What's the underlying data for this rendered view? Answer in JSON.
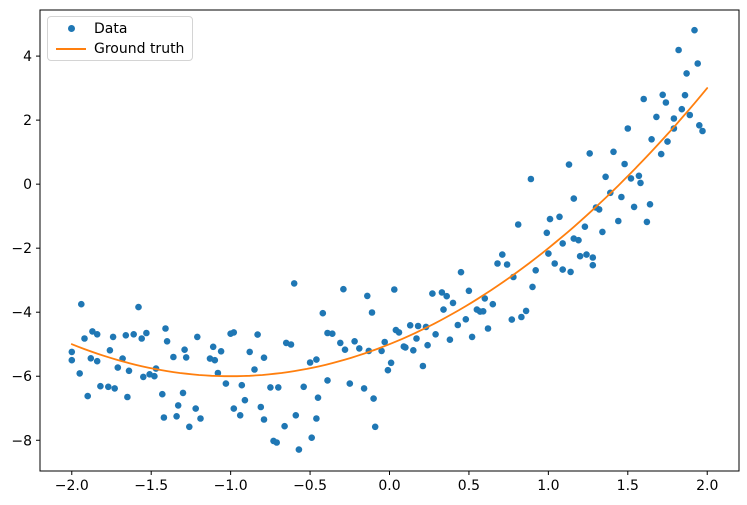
{
  "figure": {
    "background": "#ffffff"
  },
  "legend": {
    "position": "upper-left",
    "items": [
      {
        "label": "Data",
        "marker": "dot",
        "color": "#1f77b4"
      },
      {
        "label": "Ground truth",
        "marker": "line",
        "color": "#ff7f0e"
      }
    ]
  },
  "chart_data": {
    "type": "scatter",
    "title": "",
    "xlabel": "",
    "ylabel": "",
    "grid": false,
    "legend_position": "upper left",
    "xlim": [
      -2.2,
      2.2
    ],
    "ylim": [
      -8.96,
      5.44
    ],
    "xticks": [
      -2.0,
      -1.5,
      -1.0,
      -0.5,
      0.0,
      0.5,
      1.0,
      1.5,
      2.0
    ],
    "xtick_labels": [
      "−2.0",
      "−1.5",
      "−1.0",
      "−0.5",
      "0.0",
      "0.5",
      "1.0",
      "1.5",
      "2.0"
    ],
    "yticks": [
      -8,
      -6,
      -4,
      -2,
      0,
      2,
      4
    ],
    "ytick_labels": [
      "−8",
      "−6",
      "−4",
      "−2",
      "0",
      "2",
      "4"
    ],
    "colors": {
      "data": "#1f77b4",
      "ground_truth": "#ff7f0e",
      "spine": "#000000",
      "tick_text": "#000000"
    },
    "series": [
      {
        "name": "Data",
        "type": "scatter",
        "color": "#1f77b4",
        "marker_radius": 3.3,
        "points": [
          [
            -2.0,
            -5.24
          ],
          [
            -2.0,
            -5.5
          ],
          [
            -1.95,
            -5.91
          ],
          [
            -1.94,
            -3.75
          ],
          [
            -1.92,
            -4.82
          ],
          [
            -1.9,
            -6.62
          ],
          [
            -1.88,
            -5.44
          ],
          [
            -1.87,
            -4.6
          ],
          [
            -1.84,
            -4.69
          ],
          [
            -1.84,
            -5.53
          ],
          [
            -1.82,
            -6.31
          ],
          [
            -1.77,
            -6.33
          ],
          [
            -1.76,
            -5.19
          ],
          [
            -1.74,
            -4.77
          ],
          [
            -1.73,
            -6.38
          ],
          [
            -1.71,
            -5.73
          ],
          [
            -1.68,
            -5.45
          ],
          [
            -1.66,
            -4.72
          ],
          [
            -1.65,
            -6.65
          ],
          [
            -1.64,
            -5.83
          ],
          [
            -1.61,
            -4.69
          ],
          [
            -1.58,
            -3.84
          ],
          [
            -1.56,
            -4.82
          ],
          [
            -1.55,
            -6.02
          ],
          [
            -1.53,
            -4.65
          ],
          [
            -1.51,
            -5.94
          ],
          [
            -1.48,
            -6.0
          ],
          [
            -1.47,
            -5.76
          ],
          [
            -1.43,
            -6.56
          ],
          [
            -1.42,
            -7.29
          ],
          [
            -1.41,
            -4.51
          ],
          [
            -1.4,
            -4.91
          ],
          [
            -1.36,
            -5.4
          ],
          [
            -1.34,
            -7.25
          ],
          [
            -1.33,
            -6.91
          ],
          [
            -1.3,
            -6.52
          ],
          [
            -1.29,
            -5.17
          ],
          [
            -1.28,
            -5.41
          ],
          [
            -1.26,
            -7.58
          ],
          [
            -1.22,
            -7.01
          ],
          [
            -1.21,
            -4.77
          ],
          [
            -1.19,
            -7.32
          ],
          [
            -1.13,
            -5.45
          ],
          [
            -1.11,
            -5.08
          ],
          [
            -1.1,
            -5.5
          ],
          [
            -1.08,
            -5.9
          ],
          [
            -1.06,
            -5.22
          ],
          [
            -1.03,
            -6.23
          ],
          [
            -1.0,
            -4.67
          ],
          [
            -0.98,
            -4.63
          ],
          [
            -0.98,
            -7.01
          ],
          [
            -0.94,
            -7.22
          ],
          [
            -0.93,
            -6.28
          ],
          [
            -0.91,
            -6.75
          ],
          [
            -0.88,
            -5.24
          ],
          [
            -0.85,
            -5.79
          ],
          [
            -0.83,
            -4.7
          ],
          [
            -0.81,
            -6.96
          ],
          [
            -0.79,
            -5.42
          ],
          [
            -0.79,
            -7.35
          ],
          [
            -0.75,
            -6.35
          ],
          [
            -0.73,
            -8.02
          ],
          [
            -0.71,
            -8.07
          ],
          [
            -0.7,
            -6.35
          ],
          [
            -0.66,
            -7.56
          ],
          [
            -0.65,
            -4.96
          ],
          [
            -0.62,
            -5.01
          ],
          [
            -0.6,
            -3.1
          ],
          [
            -0.59,
            -7.22
          ],
          [
            -0.57,
            -8.29
          ],
          [
            -0.54,
            -6.33
          ],
          [
            -0.5,
            -5.57
          ],
          [
            -0.49,
            -7.92
          ],
          [
            -0.46,
            -5.48
          ],
          [
            -0.46,
            -7.32
          ],
          [
            -0.45,
            -6.67
          ],
          [
            -0.42,
            -4.03
          ],
          [
            -0.39,
            -4.65
          ],
          [
            -0.39,
            -6.13
          ],
          [
            -0.36,
            -4.67
          ],
          [
            -0.31,
            -4.96
          ],
          [
            -0.29,
            -3.28
          ],
          [
            -0.28,
            -5.17
          ],
          [
            -0.25,
            -6.23
          ],
          [
            -0.22,
            -4.91
          ],
          [
            -0.19,
            -5.13
          ],
          [
            -0.16,
            -6.38
          ],
          [
            -0.14,
            -3.49
          ],
          [
            -0.13,
            -5.21
          ],
          [
            -0.11,
            -4.01
          ],
          [
            -0.1,
            -6.7
          ],
          [
            -0.09,
            -7.58
          ],
          [
            -0.05,
            -5.21
          ],
          [
            -0.03,
            -4.93
          ],
          [
            -0.01,
            -5.81
          ],
          [
            0.01,
            -5.58
          ],
          [
            0.03,
            -3.29
          ],
          [
            0.04,
            -4.56
          ],
          [
            0.06,
            -4.63
          ],
          [
            0.09,
            -5.07
          ],
          [
            0.1,
            -5.1
          ],
          [
            0.13,
            -4.41
          ],
          [
            0.15,
            -5.19
          ],
          [
            0.17,
            -4.82
          ],
          [
            0.18,
            -4.43
          ],
          [
            0.21,
            -5.68
          ],
          [
            0.23,
            -4.46
          ],
          [
            0.24,
            -5.03
          ],
          [
            0.27,
            -3.42
          ],
          [
            0.29,
            -4.69
          ],
          [
            0.33,
            -3.38
          ],
          [
            0.34,
            -3.92
          ],
          [
            0.36,
            -3.5
          ],
          [
            0.38,
            -4.86
          ],
          [
            0.4,
            -3.71
          ],
          [
            0.43,
            -4.4
          ],
          [
            0.45,
            -2.75
          ],
          [
            0.48,
            -4.22
          ],
          [
            0.5,
            -3.33
          ],
          [
            0.52,
            -4.77
          ],
          [
            0.55,
            -3.92
          ],
          [
            0.57,
            -3.98
          ],
          [
            0.59,
            -3.97
          ],
          [
            0.6,
            -3.57
          ],
          [
            0.62,
            -4.51
          ],
          [
            0.65,
            -3.75
          ],
          [
            0.68,
            -2.48
          ],
          [
            0.71,
            -2.2
          ],
          [
            0.74,
            -2.51
          ],
          [
            0.77,
            -4.23
          ],
          [
            0.78,
            -2.9
          ],
          [
            0.81,
            -1.26
          ],
          [
            0.83,
            -4.15
          ],
          [
            0.86,
            -3.96
          ],
          [
            0.89,
            0.16
          ],
          [
            0.9,
            -3.21
          ],
          [
            0.92,
            -2.69
          ],
          [
            0.99,
            -1.52
          ],
          [
            1.0,
            -2.17
          ],
          [
            1.01,
            -1.09
          ],
          [
            1.04,
            -2.48
          ],
          [
            1.07,
            -1.02
          ],
          [
            1.09,
            -1.85
          ],
          [
            1.09,
            -2.67
          ],
          [
            1.13,
            0.61
          ],
          [
            1.14,
            -2.74
          ],
          [
            1.16,
            -0.45
          ],
          [
            1.16,
            -1.7
          ],
          [
            1.19,
            -1.75
          ],
          [
            1.2,
            -2.25
          ],
          [
            1.23,
            -1.33
          ],
          [
            1.24,
            -2.2
          ],
          [
            1.26,
            0.96
          ],
          [
            1.28,
            -2.29
          ],
          [
            1.28,
            -2.53
          ],
          [
            1.3,
            -0.73
          ],
          [
            1.32,
            -0.79
          ],
          [
            1.34,
            -1.49
          ],
          [
            1.36,
            0.23
          ],
          [
            1.39,
            -0.27
          ],
          [
            1.41,
            1.01
          ],
          [
            1.44,
            -1.15
          ],
          [
            1.46,
            -0.4
          ],
          [
            1.48,
            0.63
          ],
          [
            1.5,
            1.74
          ],
          [
            1.52,
            0.18
          ],
          [
            1.54,
            -0.71
          ],
          [
            1.57,
            0.26
          ],
          [
            1.58,
            0.04
          ],
          [
            1.6,
            2.66
          ],
          [
            1.62,
            -1.18
          ],
          [
            1.64,
            -0.63
          ],
          [
            1.65,
            1.4
          ],
          [
            1.68,
            2.1
          ],
          [
            1.71,
            0.94
          ],
          [
            1.72,
            2.79
          ],
          [
            1.74,
            2.55
          ],
          [
            1.75,
            1.33
          ],
          [
            1.79,
            2.05
          ],
          [
            1.79,
            1.74
          ],
          [
            1.82,
            4.19
          ],
          [
            1.84,
            2.34
          ],
          [
            1.86,
            2.78
          ],
          [
            1.87,
            3.46
          ],
          [
            1.89,
            2.16
          ],
          [
            1.92,
            4.81
          ],
          [
            1.94,
            3.77
          ],
          [
            1.95,
            1.84
          ],
          [
            1.97,
            1.66
          ]
        ]
      },
      {
        "name": "Ground truth",
        "type": "line",
        "color": "#ff7f0e",
        "line_width": 1.8,
        "formula": "y = x^2 + 2x - 5",
        "coefficients": [
          1,
          2,
          -5
        ],
        "x_range": [
          -2,
          2
        ]
      }
    ]
  }
}
